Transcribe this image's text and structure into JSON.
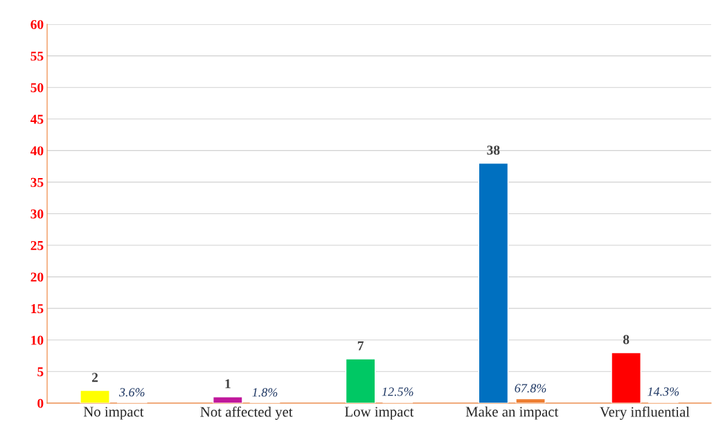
{
  "chart_data": {
    "type": "bar",
    "categories": [
      "No impact",
      "Not affected yet",
      "Low impact",
      "Make an impact",
      "Very influential"
    ],
    "series": [
      {
        "colors": [
          "#ffff00",
          "#c0189c",
          "#00c864",
          "#0070c0",
          "#ff0000"
        ],
        "values": [
          2,
          1,
          7,
          38,
          8
        ],
        "value_labels": [
          "2",
          "1",
          "7",
          "38",
          "8"
        ]
      },
      {
        "color": "#ed7d31",
        "values": [
          0.036,
          0.018,
          0.125,
          0.678,
          0.143
        ],
        "value_labels": [
          "3.6%",
          "1.8%",
          "12.5%",
          "67.8%",
          "14.3%"
        ]
      }
    ],
    "ylim": [
      0,
      60
    ],
    "yticks": [
      0,
      5,
      10,
      15,
      20,
      25,
      30,
      35,
      40,
      45,
      50,
      55,
      60
    ],
    "grid": "y"
  }
}
